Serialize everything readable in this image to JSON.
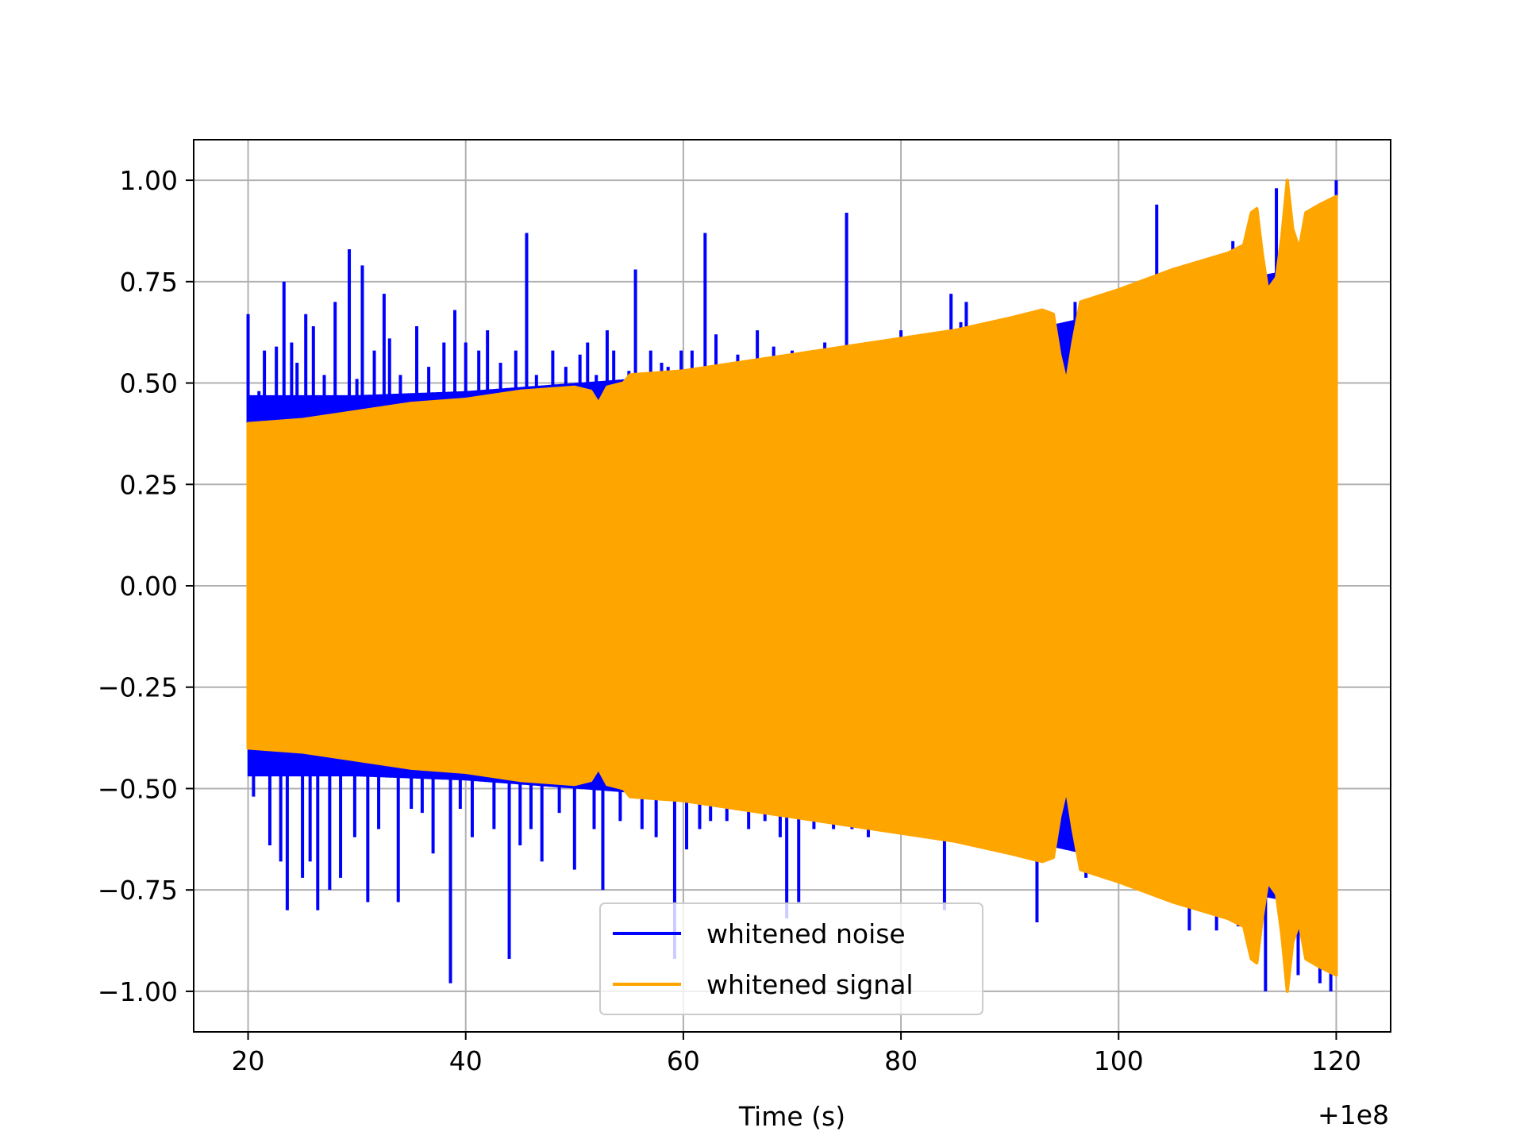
{
  "chart_data": {
    "type": "line",
    "title": "",
    "xlabel": "Time (s)",
    "ylabel": "",
    "x_offset_label": "+1e8",
    "xlim": [
      15,
      125
    ],
    "ylim": [
      -1.1,
      1.1
    ],
    "x_ticks": [
      20,
      40,
      60,
      80,
      100,
      120
    ],
    "x_tick_labels": [
      "20",
      "40",
      "60",
      "80",
      "100",
      "120"
    ],
    "y_ticks": [
      1.0,
      0.75,
      0.5,
      0.25,
      0.0,
      -0.25,
      -0.5,
      -0.75,
      -1.0
    ],
    "y_tick_labels": [
      "1.00",
      "0.75",
      "0.50",
      "0.25",
      "0.00",
      "−0.25",
      "−0.50",
      "−0.75",
      "−1.00"
    ],
    "grid": true,
    "legend_position": "lower center",
    "series": [
      {
        "name": "whitened noise",
        "color": "#0000ff",
        "x_range": [
          20,
          120
        ],
        "bulk_envelope_upper": [
          [
            20,
            0.47
          ],
          [
            30,
            0.47
          ],
          [
            40,
            0.48
          ],
          [
            50,
            0.5
          ],
          [
            60,
            0.52
          ],
          [
            70,
            0.55
          ],
          [
            80,
            0.58
          ],
          [
            90,
            0.62
          ],
          [
            100,
            0.68
          ],
          [
            110,
            0.75
          ],
          [
            120,
            0.8
          ]
        ],
        "bulk_envelope_lower": [
          [
            20,
            -0.47
          ],
          [
            30,
            -0.47
          ],
          [
            40,
            -0.48
          ],
          [
            50,
            -0.5
          ],
          [
            60,
            -0.52
          ],
          [
            70,
            -0.55
          ],
          [
            80,
            -0.58
          ],
          [
            90,
            -0.62
          ],
          [
            100,
            -0.68
          ],
          [
            110,
            -0.75
          ],
          [
            120,
            -0.8
          ]
        ],
        "spikes": [
          [
            20.0,
            0.67
          ],
          [
            20.5,
            -0.52
          ],
          [
            21.0,
            0.48
          ],
          [
            21.5,
            0.58
          ],
          [
            22.0,
            -0.64
          ],
          [
            22.6,
            0.59
          ],
          [
            23.0,
            -0.68
          ],
          [
            23.3,
            0.75
          ],
          [
            23.6,
            -0.8
          ],
          [
            24.0,
            0.6
          ],
          [
            24.5,
            0.55
          ],
          [
            25.0,
            -0.72
          ],
          [
            25.3,
            0.67
          ],
          [
            25.7,
            -0.68
          ],
          [
            26.0,
            0.64
          ],
          [
            26.4,
            -0.8
          ],
          [
            27.0,
            0.52
          ],
          [
            27.5,
            -0.75
          ],
          [
            28.0,
            0.7
          ],
          [
            28.5,
            -0.72
          ],
          [
            29.3,
            0.83
          ],
          [
            29.8,
            -0.62
          ],
          [
            30.0,
            0.51
          ],
          [
            30.5,
            0.79
          ],
          [
            31.0,
            -0.78
          ],
          [
            31.6,
            0.58
          ],
          [
            32.0,
            -0.6
          ],
          [
            32.5,
            0.72
          ],
          [
            33.0,
            0.61
          ],
          [
            33.8,
            -0.78
          ],
          [
            34.0,
            0.52
          ],
          [
            35.0,
            -0.55
          ],
          [
            35.5,
            0.64
          ],
          [
            36.0,
            -0.56
          ],
          [
            36.6,
            0.54
          ],
          [
            37.0,
            -0.66
          ],
          [
            38.0,
            0.6
          ],
          [
            38.6,
            -0.98
          ],
          [
            39.0,
            0.68
          ],
          [
            39.5,
            -0.55
          ],
          [
            40.0,
            0.6
          ],
          [
            40.6,
            -0.62
          ],
          [
            41.2,
            0.58
          ],
          [
            42.0,
            0.63
          ],
          [
            42.6,
            -0.6
          ],
          [
            43.2,
            0.55
          ],
          [
            44.0,
            -0.92
          ],
          [
            44.6,
            0.58
          ],
          [
            45.0,
            -0.64
          ],
          [
            45.6,
            0.87
          ],
          [
            46.0,
            -0.6
          ],
          [
            46.5,
            0.52
          ],
          [
            47.0,
            -0.68
          ],
          [
            48.0,
            0.58
          ],
          [
            48.6,
            -0.56
          ],
          [
            49.2,
            0.54
          ],
          [
            50.0,
            -0.7
          ],
          [
            50.5,
            0.57
          ],
          [
            51.2,
            0.6
          ],
          [
            51.8,
            -0.6
          ],
          [
            52.0,
            0.52
          ],
          [
            52.6,
            -0.75
          ],
          [
            53.0,
            0.63
          ],
          [
            53.6,
            0.58
          ],
          [
            54.2,
            -0.58
          ],
          [
            55.0,
            0.53
          ],
          [
            55.6,
            0.78
          ],
          [
            56.2,
            -0.6
          ],
          [
            57.0,
            0.58
          ],
          [
            57.5,
            -0.62
          ],
          [
            58.0,
            0.55
          ],
          [
            58.6,
            0.54
          ],
          [
            59.2,
            -0.92
          ],
          [
            59.8,
            0.58
          ],
          [
            60.3,
            -0.65
          ],
          [
            60.8,
            0.58
          ],
          [
            61.5,
            -0.6
          ],
          [
            62.0,
            0.87
          ],
          [
            62.5,
            -0.58
          ],
          [
            63.0,
            0.62
          ],
          [
            64.0,
            -0.58
          ],
          [
            65.0,
            0.57
          ],
          [
            66.0,
            -0.6
          ],
          [
            66.8,
            0.63
          ],
          [
            67.5,
            -0.58
          ],
          [
            68.3,
            0.59
          ],
          [
            68.9,
            -0.62
          ],
          [
            69.5,
            -0.82
          ],
          [
            70.0,
            0.58
          ],
          [
            70.6,
            -0.78
          ],
          [
            71.2,
            0.57
          ],
          [
            72.0,
            -0.6
          ],
          [
            73.0,
            0.6
          ],
          [
            73.8,
            -0.6
          ],
          [
            75.0,
            0.92
          ],
          [
            75.5,
            -0.6
          ],
          [
            76.0,
            0.58
          ],
          [
            77.0,
            -0.62
          ],
          [
            78.0,
            0.6
          ],
          [
            79.0,
            -0.6
          ],
          [
            80.0,
            0.63
          ],
          [
            81.0,
            -0.6
          ],
          [
            82.0,
            0.6
          ],
          [
            83.0,
            0.62
          ],
          [
            84.0,
            -0.8
          ],
          [
            84.6,
            0.72
          ],
          [
            85.5,
            0.65
          ],
          [
            86.0,
            0.7
          ],
          [
            87.0,
            -0.62
          ],
          [
            88.0,
            0.65
          ],
          [
            89.0,
            -0.65
          ],
          [
            90.0,
            0.66
          ],
          [
            91.0,
            -0.66
          ],
          [
            92.5,
            -0.83
          ],
          [
            93.0,
            0.68
          ],
          [
            95.0,
            -0.55
          ],
          [
            96.0,
            0.7
          ],
          [
            97.0,
            -0.72
          ],
          [
            98.0,
            0.7
          ],
          [
            100.0,
            -0.72
          ],
          [
            102.0,
            0.73
          ],
          [
            103.5,
            0.94
          ],
          [
            104.5,
            -0.76
          ],
          [
            106.0,
            0.77
          ],
          [
            106.5,
            -0.85
          ],
          [
            107.5,
            0.78
          ],
          [
            109.0,
            -0.85
          ],
          [
            110.5,
            0.85
          ],
          [
            111.0,
            -0.84
          ],
          [
            112.5,
            -0.9
          ],
          [
            113.5,
            -1.0
          ],
          [
            114.5,
            0.98
          ],
          [
            115.5,
            1.0
          ],
          [
            116.5,
            -0.96
          ],
          [
            117.5,
            0.92
          ],
          [
            118.5,
            -0.98
          ],
          [
            119.5,
            -1.0
          ],
          [
            120.0,
            1.0
          ]
        ]
      },
      {
        "name": "whitened signal",
        "color": "#ffa500",
        "x_range": [
          20,
          120
        ],
        "envelope": [
          [
            20,
            0.4
          ],
          [
            25,
            0.41
          ],
          [
            30,
            0.43
          ],
          [
            35,
            0.45
          ],
          [
            40,
            0.46
          ],
          [
            45,
            0.48
          ],
          [
            50,
            0.49
          ],
          [
            51.5,
            0.48
          ],
          [
            52.2,
            0.45
          ],
          [
            53,
            0.49
          ],
          [
            54.5,
            0.5
          ],
          [
            55.1,
            0.52
          ],
          [
            60,
            0.53
          ],
          [
            65,
            0.55
          ],
          [
            70,
            0.57
          ],
          [
            75,
            0.59
          ],
          [
            80,
            0.61
          ],
          [
            85,
            0.63
          ],
          [
            90,
            0.66
          ],
          [
            93,
            0.68
          ],
          [
            94,
            0.67
          ],
          [
            94.6,
            0.57
          ],
          [
            95.2,
            0.5
          ],
          [
            95.8,
            0.6
          ],
          [
            96.5,
            0.7
          ],
          [
            100,
            0.73
          ],
          [
            105,
            0.78
          ],
          [
            110,
            0.82
          ],
          [
            111.5,
            0.84
          ],
          [
            112.2,
            0.92
          ],
          [
            112.7,
            0.93
          ],
          [
            113.2,
            0.82
          ],
          [
            113.7,
            0.73
          ],
          [
            114.5,
            0.76
          ],
          [
            115.0,
            0.86
          ],
          [
            115.5,
            1.0
          ],
          [
            116.0,
            0.88
          ],
          [
            116.6,
            0.83
          ],
          [
            117.2,
            0.92
          ],
          [
            118.5,
            0.94
          ],
          [
            120,
            0.96
          ]
        ]
      }
    ]
  }
}
